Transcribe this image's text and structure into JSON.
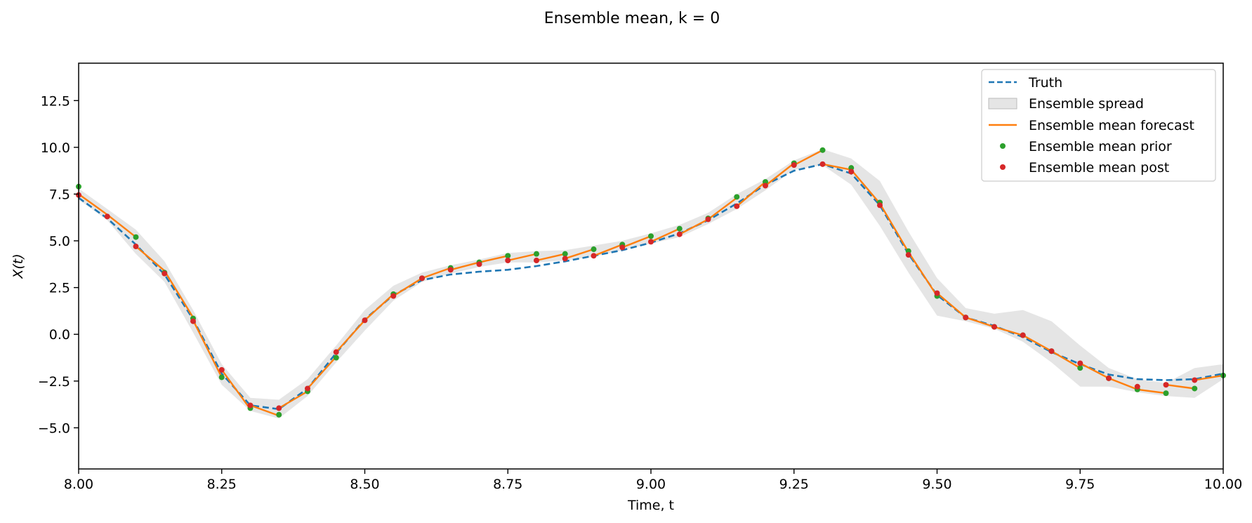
{
  "chart_data": {
    "type": "line",
    "title": "Ensemble mean, k = 0",
    "xlabel": "Time, t",
    "ylabel": "X(t)",
    "xlim": [
      8.0,
      10.0
    ],
    "ylim": [
      -7.2,
      14.5
    ],
    "xticks": [
      "8.00",
      "8.25",
      "8.50",
      "8.75",
      "9.00",
      "9.25",
      "9.50",
      "9.75",
      "10.00"
    ],
    "yticks": [
      "−5.0",
      "−2.5",
      "0.0",
      "2.5",
      "5.0",
      "7.5",
      "10.0",
      "12.5"
    ],
    "grid": false,
    "legend_position": "top-right",
    "legend": [
      "Truth",
      "Ensemble spread",
      "Ensemble mean forecast",
      "Ensemble mean prior",
      "Ensemble mean post"
    ],
    "colors": {
      "truth": "#1f77b4",
      "spread": "#d3d3d3",
      "forecast": "#ff7f0e",
      "prior": "#2ca02c",
      "post": "#d62728"
    },
    "series": [
      {
        "name": "Truth",
        "style": "dashed",
        "x": [
          8.0,
          8.05,
          8.1,
          8.15,
          8.2,
          8.25,
          8.3,
          8.35,
          8.4,
          8.45,
          8.5,
          8.55,
          8.6,
          8.65,
          8.7,
          8.75,
          8.8,
          8.85,
          8.9,
          8.95,
          9.0,
          9.05,
          9.1,
          9.15,
          9.2,
          9.25,
          9.3,
          9.35,
          9.4,
          9.45,
          9.5,
          9.55,
          9.6,
          9.65,
          9.7,
          9.75,
          9.8,
          9.85,
          9.9,
          9.95,
          10.0
        ],
        "y": [
          7.3,
          6.2,
          4.8,
          3.2,
          0.8,
          -2.1,
          -3.8,
          -4.0,
          -2.9,
          -1.0,
          0.8,
          2.1,
          2.9,
          3.2,
          3.35,
          3.45,
          3.65,
          3.9,
          4.2,
          4.5,
          4.9,
          5.4,
          6.1,
          7.0,
          8.0,
          8.75,
          9.1,
          8.6,
          6.9,
          4.3,
          2.1,
          0.9,
          0.45,
          -0.15,
          -0.95,
          -1.6,
          -2.15,
          -2.4,
          -2.45,
          -2.4,
          -2.1
        ]
      },
      {
        "name": "Ensemble mean forecast",
        "style": "solid",
        "segments": [
          {
            "x": [
              8.0,
              8.05,
              8.1
            ],
            "y": [
              7.5,
              6.4,
              5.2
            ]
          },
          {
            "x": [
              8.1,
              8.15,
              8.2
            ],
            "y": [
              4.7,
              3.4,
              0.9
            ]
          },
          {
            "x": [
              8.2,
              8.25
            ],
            "y": [
              0.75,
              -2.3
            ]
          },
          {
            "x": [
              8.25,
              8.3
            ],
            "y": [
              -1.9,
              -4.0
            ]
          },
          {
            "x": [
              8.3,
              8.35
            ],
            "y": [
              -3.8,
              -4.35
            ]
          },
          {
            "x": [
              8.35,
              8.4
            ],
            "y": [
              -3.95,
              -3.05
            ]
          },
          {
            "x": [
              8.4,
              8.45
            ],
            "y": [
              -2.9,
              -1.2
            ]
          },
          {
            "x": [
              8.45,
              8.5,
              8.55
            ],
            "y": [
              -0.95,
              0.75,
              2.15
            ]
          },
          {
            "x": [
              8.55,
              8.6,
              8.65
            ],
            "y": [
              2.05,
              3.0,
              3.55
            ]
          },
          {
            "x": [
              8.65,
              8.7,
              8.75
            ],
            "y": [
              3.45,
              3.85,
              4.2
            ]
          },
          {
            "x": [
              8.75,
              8.8
            ],
            "y": [
              3.95,
              4.3
            ]
          },
          {
            "x": [
              8.8,
              8.85
            ],
            "y": [
              3.95,
              4.3
            ]
          },
          {
            "x": [
              8.85,
              8.9
            ],
            "y": [
              4.05,
              4.55
            ]
          },
          {
            "x": [
              8.9,
              8.95
            ],
            "y": [
              4.2,
              4.8
            ]
          },
          {
            "x": [
              8.95,
              9.0
            ],
            "y": [
              4.65,
              5.25
            ]
          },
          {
            "x": [
              9.0,
              9.05
            ],
            "y": [
              4.95,
              5.65
            ]
          },
          {
            "x": [
              9.05,
              9.1,
              9.15
            ],
            "y": [
              5.35,
              6.15,
              7.3
            ]
          },
          {
            "x": [
              9.15,
              9.2
            ],
            "y": [
              6.85,
              8.15
            ]
          },
          {
            "x": [
              9.2,
              9.25
            ],
            "y": [
              7.95,
              9.15
            ]
          },
          {
            "x": [
              9.25,
              9.3
            ],
            "y": [
              9.05,
              9.85
            ]
          },
          {
            "x": [
              9.3,
              9.35,
              9.4,
              9.45,
              9.5
            ],
            "y": [
              9.1,
              8.8,
              7.0,
              4.4,
              2.05
            ]
          },
          {
            "x": [
              9.5,
              9.55,
              9.6,
              9.65,
              9.7,
              9.75
            ],
            "y": [
              2.2,
              0.9,
              0.4,
              -0.05,
              -0.9,
              -1.8
            ]
          },
          {
            "x": [
              9.75,
              9.8,
              9.85,
              9.9
            ],
            "y": [
              -1.55,
              -2.35,
              -2.95,
              -3.15
            ]
          },
          {
            "x": [
              9.9,
              9.95
            ],
            "y": [
              -2.7,
              -2.9
            ]
          },
          {
            "x": [
              9.95,
              10.0
            ],
            "y": [
              -2.45,
              -2.2
            ]
          }
        ]
      },
      {
        "name": "Ensemble spread",
        "style": "band",
        "x": [
          8.0,
          8.05,
          8.1,
          8.15,
          8.2,
          8.25,
          8.3,
          8.35,
          8.4,
          8.45,
          8.5,
          8.55,
          8.6,
          8.65,
          8.7,
          8.75,
          8.8,
          8.85,
          8.9,
          8.95,
          9.0,
          9.05,
          9.1,
          9.15,
          9.2,
          9.25,
          9.3,
          9.35,
          9.4,
          9.45,
          9.5,
          9.55,
          9.6,
          9.65,
          9.7,
          9.75,
          9.8,
          9.85,
          9.9,
          9.95,
          10.0
        ],
        "upper": [
          7.8,
          6.7,
          5.6,
          3.9,
          1.3,
          -1.6,
          -3.4,
          -3.5,
          -2.4,
          -0.6,
          1.3,
          2.6,
          3.3,
          3.7,
          4.0,
          4.35,
          4.45,
          4.5,
          4.75,
          5.0,
          5.4,
          5.85,
          6.5,
          7.5,
          8.3,
          9.3,
          9.9,
          9.4,
          8.2,
          5.5,
          3.0,
          1.4,
          1.1,
          1.3,
          0.7,
          -0.6,
          -1.8,
          -2.4,
          -2.6,
          -1.8,
          -1.6
        ],
        "lower": [
          7.2,
          6.1,
          4.3,
          2.8,
          0.1,
          -2.7,
          -4.1,
          -4.5,
          -3.3,
          -1.5,
          0.2,
          1.8,
          2.8,
          3.25,
          3.6,
          3.85,
          3.85,
          3.95,
          4.15,
          4.5,
          4.85,
          5.2,
          5.9,
          6.7,
          7.7,
          8.8,
          9.05,
          8.0,
          5.8,
          3.3,
          1.0,
          0.7,
          0.3,
          -0.4,
          -1.5,
          -2.8,
          -2.8,
          -3.1,
          -3.3,
          -3.4,
          -2.4
        ]
      },
      {
        "name": "Ensemble mean prior",
        "style": "points",
        "x": [
          8.0,
          8.1,
          8.15,
          8.2,
          8.25,
          8.3,
          8.35,
          8.4,
          8.45,
          8.55,
          8.6,
          8.65,
          8.7,
          8.75,
          8.8,
          8.85,
          8.9,
          8.95,
          9.0,
          9.05,
          9.1,
          9.15,
          9.2,
          9.25,
          9.3,
          9.35,
          9.4,
          9.45,
          9.5,
          9.55,
          9.6,
          9.65,
          9.7,
          9.75,
          9.8,
          9.85,
          9.9,
          9.95,
          10.0
        ],
        "y": [
          7.9,
          5.2,
          3.3,
          0.85,
          -2.3,
          -3.95,
          -4.3,
          -3.05,
          -1.25,
          2.15,
          3.0,
          3.55,
          3.85,
          4.2,
          4.3,
          4.3,
          4.55,
          4.8,
          5.25,
          5.65,
          6.2,
          7.35,
          8.15,
          9.15,
          9.85,
          8.9,
          7.05,
          4.45,
          2.05,
          0.9,
          0.4,
          -0.05,
          -0.9,
          -1.8,
          -2.35,
          -2.95,
          -3.15,
          -2.9,
          -2.2
        ]
      },
      {
        "name": "Ensemble mean post",
        "style": "points",
        "x": [
          8.0,
          8.05,
          8.1,
          8.15,
          8.2,
          8.25,
          8.3,
          8.35,
          8.4,
          8.45,
          8.5,
          8.55,
          8.6,
          8.65,
          8.7,
          8.75,
          8.8,
          8.85,
          8.9,
          8.95,
          9.0,
          9.05,
          9.1,
          9.15,
          9.2,
          9.25,
          9.3,
          9.35,
          9.4,
          9.45,
          9.5,
          9.55,
          9.6,
          9.65,
          9.7,
          9.75,
          9.8,
          9.85,
          9.9,
          9.95
        ],
        "y": [
          7.45,
          6.3,
          4.7,
          3.25,
          0.7,
          -1.9,
          -3.8,
          -3.95,
          -2.9,
          -0.95,
          0.75,
          2.05,
          3.0,
          3.45,
          3.75,
          3.95,
          3.95,
          4.05,
          4.2,
          4.65,
          4.95,
          5.35,
          6.15,
          6.85,
          7.95,
          9.05,
          9.1,
          8.7,
          6.9,
          4.25,
          2.2,
          0.9,
          0.4,
          -0.05,
          -0.9,
          -1.55,
          -2.35,
          -2.8,
          -2.7,
          -2.45
        ]
      }
    ]
  }
}
